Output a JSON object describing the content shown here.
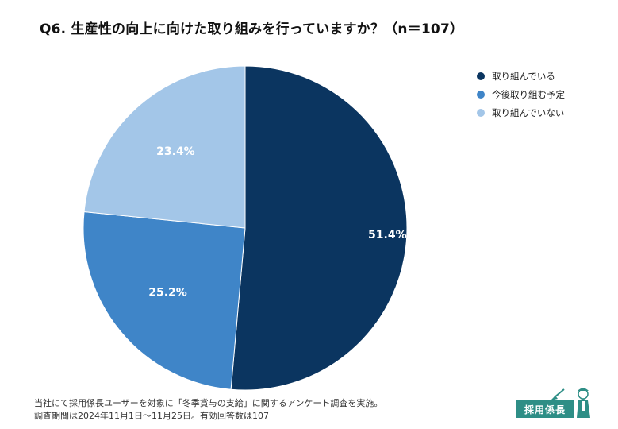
{
  "title": "Q6. 生産性の向上に向けた取り組みを行っていますか？（n＝107）",
  "chart_data": {
    "type": "pie",
    "title": "Q6. 生産性の向上に向けた取り組みを行っていますか？（n＝107）",
    "categories": [
      "取り組んでいる",
      "今後取り組む予定",
      "取り組んでいない"
    ],
    "values": [
      51.4,
      25.2,
      23.4
    ],
    "data_labels": [
      "51.4%",
      "25.2%",
      "23.4%"
    ],
    "colors": [
      "#0b3560",
      "#3f85c8",
      "#a3c6e8"
    ],
    "start": "12 o'clock, clockwise",
    "legend_position": "top-right"
  },
  "legend": {
    "items": [
      {
        "label": "取り組んでいる",
        "color": "#0b3560"
      },
      {
        "label": "今後取り組む予定",
        "color": "#3f85c8"
      },
      {
        "label": "取り組んでいない",
        "color": "#a3c6e8"
      }
    ]
  },
  "footnote": {
    "line1": "当社にて採用係長ユーザーを対象に「冬季賞与の支給」に関するアンケート調査を実施。",
    "line2": "調査期間は2024年11月1日〜11月25日。有効回答数は107"
  },
  "logo": {
    "text": "採用係長",
    "icon": "mascot-icon",
    "color": "#2e8e86"
  }
}
